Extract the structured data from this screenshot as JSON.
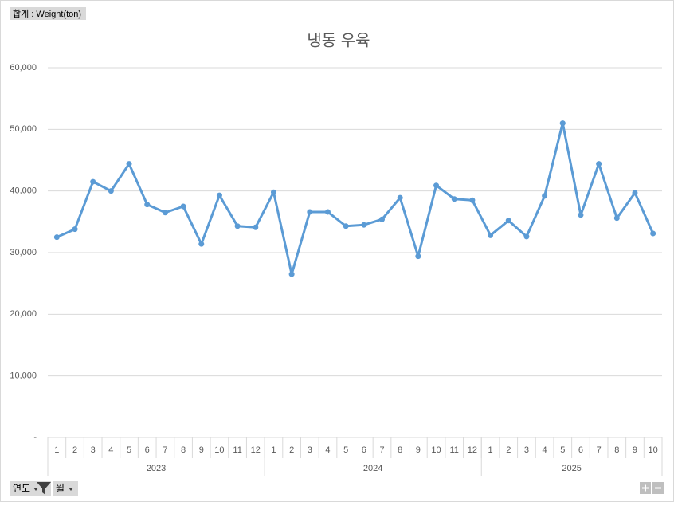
{
  "chart_data": {
    "type": "line",
    "title": "냉동 우육",
    "value_field": "합계 : Weight(ton)",
    "axis_fields": [
      "연도",
      "월"
    ],
    "category_groups": [
      {
        "label": "2023",
        "categories": [
          "1",
          "2",
          "3",
          "4",
          "5",
          "6",
          "7",
          "8",
          "9",
          "10",
          "11",
          "12"
        ]
      },
      {
        "label": "2024",
        "categories": [
          "1",
          "2",
          "3",
          "4",
          "5",
          "6",
          "7",
          "8",
          "9",
          "10",
          "11",
          "12"
        ]
      },
      {
        "label": "2025",
        "categories": [
          "1",
          "2",
          "3",
          "4",
          "5",
          "6",
          "7",
          "8",
          "9",
          "10"
        ]
      }
    ],
    "series": [
      {
        "name": "합계",
        "color": "#5b9bd5",
        "values": [
          32500,
          33800,
          41500,
          40000,
          44400,
          37800,
          36500,
          37500,
          31400,
          39300,
          34300,
          34100,
          39800,
          26500,
          36600,
          36600,
          34300,
          34500,
          35400,
          38900,
          29400,
          40900,
          38700,
          38500,
          32800,
          35200,
          32600,
          39200,
          51000,
          36100,
          44400,
          35600,
          39700,
          33100
        ]
      }
    ],
    "ylim": [
      0,
      60000
    ],
    "yticks": [
      {
        "value": 0,
        "label": "-"
      },
      {
        "value": 10000,
        "label": "10,000"
      },
      {
        "value": 20000,
        "label": "20,000"
      },
      {
        "value": 30000,
        "label": "30,000"
      },
      {
        "value": 40000,
        "label": "40,000"
      },
      {
        "value": 50000,
        "label": "50,000"
      },
      {
        "value": 60000,
        "label": "60,000"
      }
    ],
    "grid": true
  }
}
